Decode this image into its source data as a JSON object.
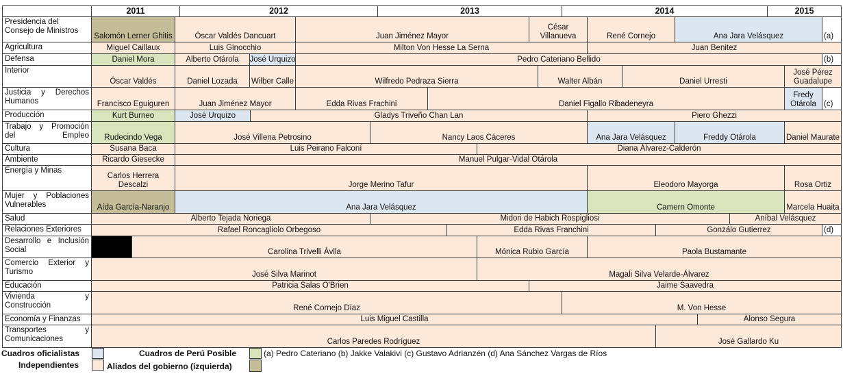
{
  "colors": {
    "independiente": "#fde9d9",
    "oficialista": "#dce6f1",
    "peru_posible": "#d8e4bc",
    "aliados": "#c4bd97",
    "black": "#000000",
    "white": "#ffffff"
  },
  "years": [
    "2011",
    "2012",
    "2013",
    "2014",
    "2015"
  ],
  "rows": [
    {
      "label": "Presidencia del Consejo de Ministros",
      "cells": [
        {
          "text": "Salomón Lerner Ghitis",
          "cat": "aliados"
        },
        {
          "text": "Óscar Valdés Dancuart",
          "cat": "independiente"
        },
        {
          "text": "Juan Jiménez Mayor",
          "cat": "independiente"
        },
        {
          "text": "César Villanueva",
          "cat": "independiente"
        },
        {
          "text": "René Cornejo",
          "cat": "independiente"
        },
        {
          "text": "Ana Jara Velásquez",
          "cat": "oficialista"
        },
        {
          "text": "(a)",
          "cat": "white"
        }
      ]
    },
    {
      "label": "Agricultura",
      "cells": [
        {
          "text": "Miguel Caillaux",
          "cat": "independiente"
        },
        {
          "text": "Luis Ginocchio",
          "cat": "independiente"
        },
        {
          "text": "Milton Von Hesse La Serna",
          "cat": "independiente"
        },
        {
          "text": "Juan Benitez",
          "cat": "independiente"
        }
      ]
    },
    {
      "label": "Defensa",
      "cells": [
        {
          "text": "Daniel Mora",
          "cat": "peru_posible"
        },
        {
          "text": "Alberto Otárola",
          "cat": "independiente"
        },
        {
          "text": "José Urquizo",
          "cat": "oficialista"
        },
        {
          "text": "Pedro Cateriano Bellido",
          "cat": "independiente"
        },
        {
          "text": "(b)",
          "cat": "white"
        }
      ]
    },
    {
      "label": "Interior",
      "cells": [
        {
          "text": "Óscar Valdés",
          "cat": "independiente"
        },
        {
          "text": "Daniel Lozada",
          "cat": "independiente"
        },
        {
          "text": "Wilber Calle",
          "cat": "independiente"
        },
        {
          "text": "Wilfredo Pedraza Sierra",
          "cat": "independiente"
        },
        {
          "text": "Walter Albán",
          "cat": "independiente"
        },
        {
          "text": "Daniel Urresti",
          "cat": "independiente"
        },
        {
          "text": "José Pérez Guadalupe",
          "cat": "independiente"
        }
      ]
    },
    {
      "label": "Justicia y Derechos Humanos",
      "cells": [
        {
          "text": "Francisco Eguiguren",
          "cat": "independiente"
        },
        {
          "text": "Juan Jiménez Mayor",
          "cat": "independiente"
        },
        {
          "text": "Edda Rivas Frachini",
          "cat": "independiente"
        },
        {
          "text": "Daniel Figallo Ribadeneyra",
          "cat": "independiente"
        },
        {
          "text": "Fredy Otárola",
          "cat": "oficialista"
        },
        {
          "text": "(c)",
          "cat": "white"
        }
      ]
    },
    {
      "label": "Producción",
      "cells": [
        {
          "text": "Kurt Burneo",
          "cat": "peru_posible"
        },
        {
          "text": "José Urquizo",
          "cat": "oficialista"
        },
        {
          "text": "Gladys Triveño Chan Lan",
          "cat": "independiente"
        },
        {
          "text": "Piero Ghezzi",
          "cat": "independiente"
        }
      ]
    },
    {
      "label": "Trabajo y Promoción del Empleo",
      "cells": [
        {
          "text": "Rudecindo Vega",
          "cat": "peru_posible"
        },
        {
          "text": "José Villena Petrosino",
          "cat": "independiente"
        },
        {
          "text": "Nancy Laos Cáceres",
          "cat": "independiente"
        },
        {
          "text": "Ana Jara Velásquez",
          "cat": "oficialista"
        },
        {
          "text": "Freddy Otárola",
          "cat": "oficialista"
        },
        {
          "text": "Daniel Maurate",
          "cat": "independiente"
        }
      ]
    },
    {
      "label": "Cultura",
      "cells": [
        {
          "text": "Susana Baca",
          "cat": "independiente"
        },
        {
          "text": "Luis Peirano Falconí",
          "cat": "independiente"
        },
        {
          "text": "Diana Álvarez-Calderón",
          "cat": "independiente"
        }
      ]
    },
    {
      "label": "Ambiente",
      "cells": [
        {
          "text": "Ricardo Giesecke",
          "cat": "independiente"
        },
        {
          "text": "Manuel Pulgar-Vidal Otárola",
          "cat": "independiente"
        }
      ]
    },
    {
      "label": "Energía y Minas",
      "cells": [
        {
          "text": "Carlos Herrera Descalzi",
          "cat": "independiente"
        },
        {
          "text": "Jorge Merino Tafur",
          "cat": "independiente"
        },
        {
          "text": "Eleodoro Mayorga",
          "cat": "independiente"
        },
        {
          "text": "Rosa Ortiz",
          "cat": "independiente"
        }
      ]
    },
    {
      "label": "Mujer y Poblaciones Vulnerables",
      "cells": [
        {
          "text": "Aída García-Naranjo",
          "cat": "aliados"
        },
        {
          "text": "Ana Jara Velásquez",
          "cat": "oficialista"
        },
        {
          "text": "Camern Omonte",
          "cat": "peru_posible"
        },
        {
          "text": "Marcela Huaita",
          "cat": "independiente"
        }
      ]
    },
    {
      "label": "Salud",
      "cells": [
        {
          "text": "Alberto Tejada Noriega",
          "cat": "independiente"
        },
        {
          "text": "Midori de Habich Rospigliosi",
          "cat": "independiente"
        },
        {
          "text": "Aníbal Velásquez",
          "cat": "independiente"
        }
      ]
    },
    {
      "label": "Relaciones Exteriores",
      "cells": [
        {
          "text": "Rafael Roncagliolo Orbegoso",
          "cat": "independiente"
        },
        {
          "text": "Edda Rivas Franchini",
          "cat": "independiente"
        },
        {
          "text": "Gonzálo Gutierrez",
          "cat": "independiente"
        },
        {
          "text": "(d)",
          "cat": "white"
        }
      ]
    },
    {
      "label": "Desarrollo e Inclusión Social",
      "cells": [
        {
          "text": "",
          "cat": "black"
        },
        {
          "text": "Carolina Trivelli Ávila",
          "cat": "independiente"
        },
        {
          "text": "Mónica Rubio García",
          "cat": "independiente"
        },
        {
          "text": "Paola Bustamante",
          "cat": "independiente"
        }
      ]
    },
    {
      "label": "Comercio Exterior y Turismo",
      "cells": [
        {
          "text": "José Silva Marinot",
          "cat": "independiente"
        },
        {
          "text": "Magali Silva Velarde-Álvarez",
          "cat": "independiente"
        }
      ]
    },
    {
      "label": "Educación",
      "cells": [
        {
          "text": "Patricia Salas O'Brien",
          "cat": "independiente"
        },
        {
          "text": "Jaime Saavedra",
          "cat": "independiente"
        }
      ]
    },
    {
      "label": "Vivienda y Construcción",
      "cells": [
        {
          "text": "René Cornejo Díaz",
          "cat": "independiente"
        },
        {
          "text": "M. Von Hesse",
          "cat": "independiente"
        }
      ]
    },
    {
      "label": "Economía y Finanzas",
      "cells": [
        {
          "text": "Luis Miguel Castilla",
          "cat": "independiente"
        },
        {
          "text": "Alonso Segura",
          "cat": "independiente"
        }
      ]
    },
    {
      "label": "Transportes y Comunicaciones",
      "cells": [
        {
          "text": "Carlos Paredes Rodríguez",
          "cat": "independiente"
        },
        {
          "text": "José Gallardo Ku",
          "cat": "independiente"
        }
      ]
    }
  ],
  "legend": {
    "oficialistas": "Cuadros oficialistas",
    "independientes": "Independientes",
    "peru_posible": "Cuadros de Perú Posible",
    "aliados": "Aliados del gobierno (izquierda)",
    "notes": "(a) Pedro Cateriano (b) Jakke Valakivi (c) Gustavo Adrianzén (d) Ana Sánchez Vargas de Ríos"
  }
}
